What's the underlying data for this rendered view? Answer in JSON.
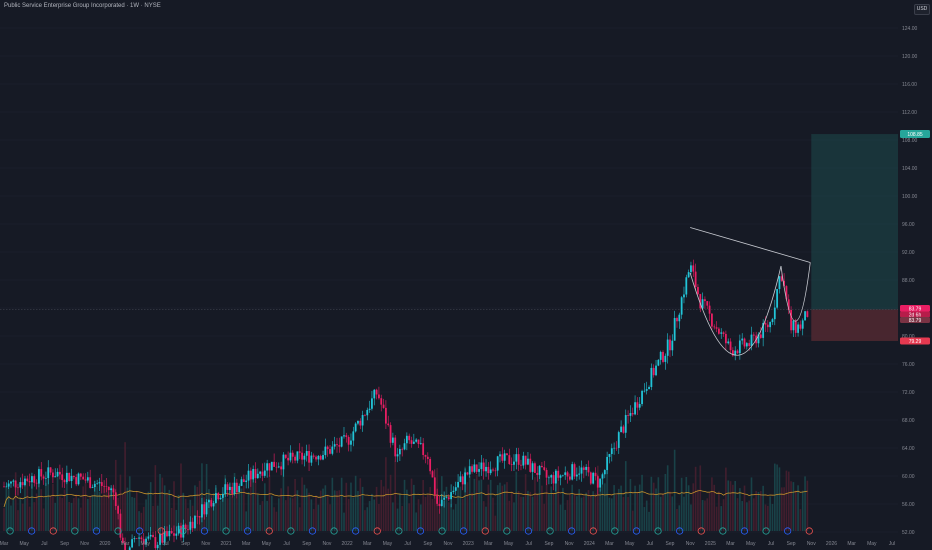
{
  "header": {
    "title": "Public Service Enterprise Group Incorporated · 1W · NYSE",
    "currency": "USD"
  },
  "colors": {
    "background": "#161a25",
    "up": "#26a69a",
    "down": "#ef5350",
    "down_candle": "#e91e63",
    "up_candle": "#22c5d8",
    "ma": "#c8932c",
    "pattern_line": "#c7cad1",
    "target_zone": "#1e4a4d",
    "stop_zone": "#5a2b33",
    "price_line": "#4a4e5a"
  },
  "chart_data": {
    "type": "candlestick",
    "ylim": [
      52,
      126
    ],
    "y_ticks": [
      52,
      56,
      60,
      64,
      68,
      72,
      76,
      80,
      84,
      88,
      92,
      96,
      100,
      104,
      108,
      112,
      116,
      120,
      124
    ],
    "y_tick_labels": [
      "52.00",
      "56.00",
      "60.00",
      "64.00",
      "68.00",
      "72.00",
      "76.00",
      "80.00",
      "84.00",
      "88.00",
      "92.00",
      "96.00",
      "100.00",
      "104.00",
      "108.00",
      "112.00",
      "116.00",
      "120.00",
      "124.00"
    ],
    "x_tick_labels": [
      "Mar",
      "May",
      "Jul",
      "Sep",
      "Nov",
      "2020",
      "Mar",
      "May",
      "Jul",
      "Sep",
      "Nov",
      "2021",
      "Mar",
      "May",
      "Jul",
      "Sep",
      "Nov",
      "2022",
      "Mar",
      "May",
      "Jul",
      "Sep",
      "Nov",
      "2023",
      "Mar",
      "May",
      "Jul",
      "Sep",
      "Nov",
      "2024",
      "Mar",
      "May",
      "Jul",
      "Sep",
      "Nov",
      "2025",
      "Mar",
      "May",
      "Jul",
      "Sep",
      "Nov",
      "2026",
      "Mar",
      "May",
      "Jul"
    ],
    "x_start": "2019-03",
    "x_end": "2026-07",
    "interval": "1W",
    "price_waypoints": [
      [
        "2019-03",
        58.5
      ],
      [
        "2019-05",
        59.5
      ],
      [
        "2019-08",
        60.5
      ],
      [
        "2019-11",
        59.5
      ],
      [
        "2020-01",
        58.5
      ],
      [
        "2020-02",
        57.5
      ],
      [
        "2020-03",
        47.0
      ],
      [
        "2020-04",
        51.5
      ],
      [
        "2020-06",
        50.5
      ],
      [
        "2020-09",
        52.5
      ],
      [
        "2020-12",
        57.5
      ],
      [
        "2021-02",
        58.5
      ],
      [
        "2021-05",
        61.5
      ],
      [
        "2021-08",
        62.5
      ],
      [
        "2021-11",
        63.5
      ],
      [
        "2022-01",
        65.0
      ],
      [
        "2022-04",
        72.0
      ],
      [
        "2022-06",
        62.5
      ],
      [
        "2022-07",
        65.0
      ],
      [
        "2022-09",
        63.0
      ],
      [
        "2022-10",
        55.5
      ],
      [
        "2023-01",
        60.5
      ],
      [
        "2023-04",
        62.0
      ],
      [
        "2023-06",
        62.5
      ],
      [
        "2023-09",
        59.5
      ],
      [
        "2023-12",
        61.0
      ],
      [
        "2024-02",
        59.0
      ],
      [
        "2024-04",
        66.0
      ],
      [
        "2024-07",
        74.0
      ],
      [
        "2024-09",
        79.0
      ],
      [
        "2024-11",
        90.0
      ],
      [
        "2024-12",
        85.0
      ],
      [
        "2025-03",
        78.0
      ],
      [
        "2025-05",
        79.0
      ],
      [
        "2025-07",
        82.0
      ],
      [
        "2025-08",
        89.5
      ],
      [
        "2025-09",
        81.0
      ],
      [
        "2025-10",
        81.5
      ],
      [
        "2025-10-25",
        83.79
      ]
    ],
    "last_price": "83.79",
    "last_price_countdown": "2d 6h",
    "target_price": "108.85",
    "stop_prices": [
      "83.79",
      "79.29"
    ],
    "pattern": "cup and handle",
    "moving_average_volume": true,
    "event_marker_count": 38
  },
  "labels": {
    "target": "108.85",
    "current": "83.79",
    "countdown": "2d 6h",
    "stop_top": "83.79",
    "stop_bottom": "79.29"
  }
}
